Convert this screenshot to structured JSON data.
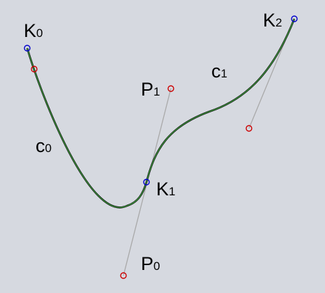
{
  "colors": {
    "background": "#d6d9e0",
    "curve_outer": "#000000",
    "curve_inner": "#49b649",
    "handle_line": "#a9a9a9",
    "knot_point": "#0000cc",
    "control_point": "#cc0000"
  },
  "labels": {
    "k0": {
      "main": "K",
      "sub": "0"
    },
    "k1": {
      "main": "K",
      "sub": "1"
    },
    "k2": {
      "main": "K",
      "sub": "2"
    },
    "p0": {
      "main": "P",
      "sub": "0"
    },
    "p1": {
      "main": "P",
      "sub": "1"
    },
    "c0": {
      "main": "c",
      "sub": "0"
    },
    "c1": {
      "main": "c",
      "sub": "1"
    }
  }
}
